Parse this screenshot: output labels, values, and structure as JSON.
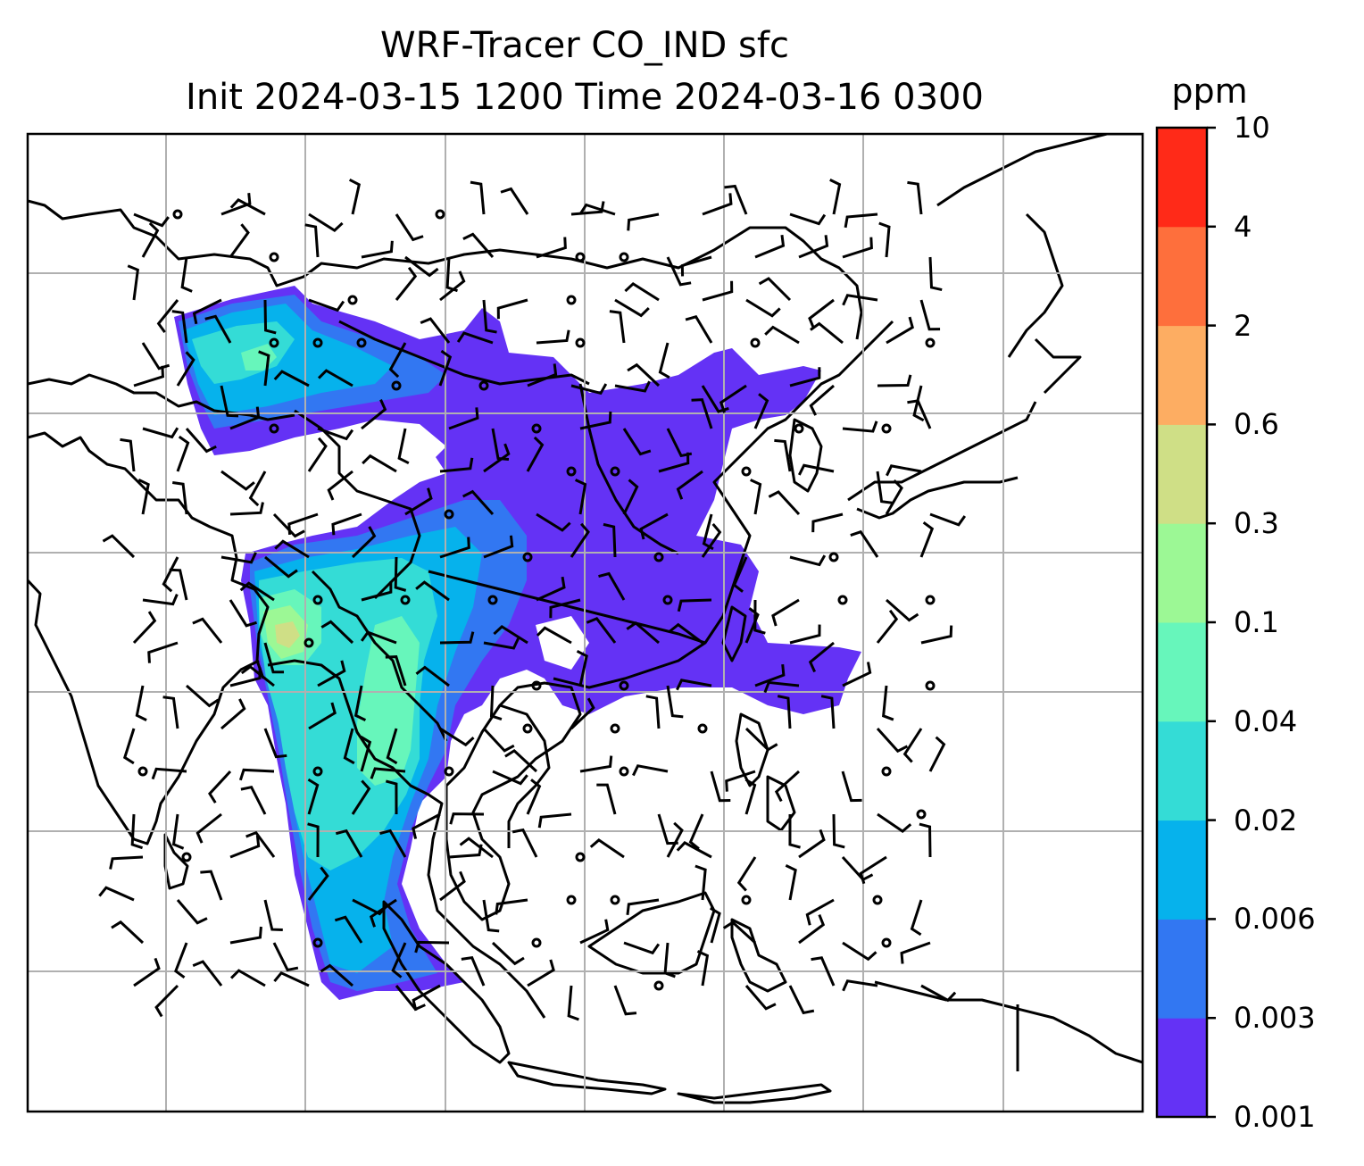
{
  "title": {
    "line1": "WRF-Tracer CO_IND sfc",
    "line2": "Init 2024-03-15 1200 Time 2024-03-16 0300"
  },
  "colorbar": {
    "unit": "ppm",
    "levels": [
      "0.001",
      "0.003",
      "0.006",
      "0.02",
      "0.04",
      "0.1",
      "0.3",
      "0.6",
      "2",
      "4",
      "10"
    ],
    "colors": [
      "#6432f5",
      "#3277f2",
      "#06b2ec",
      "#34dcd6",
      "#67f6bb",
      "#9cf895",
      "#cfdf86",
      "#fdad62",
      "#fe6f3c",
      "#ff2a18"
    ]
  },
  "map": {
    "gridlines": true,
    "features": [
      "coastlines",
      "country-borders",
      "wind-barbs",
      "tracer-concentration-fill"
    ]
  }
}
